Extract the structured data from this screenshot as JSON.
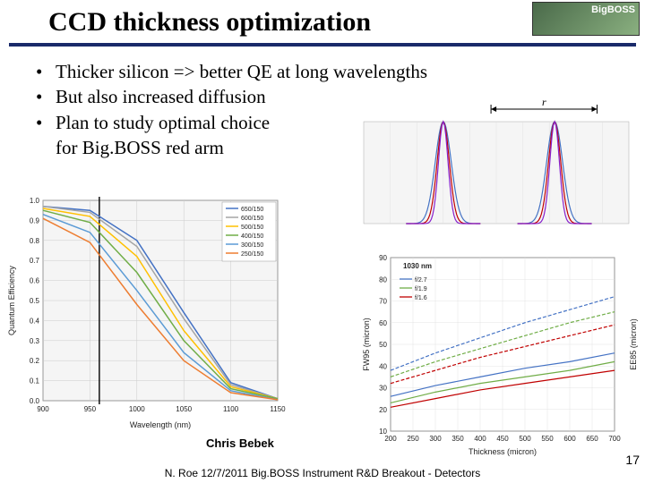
{
  "logo": {
    "text": "BigBOSS"
  },
  "title": "CCD thickness optimization",
  "bullets": [
    "Thicker silicon => better QE at long wavelengths",
    "But also increased diffusion",
    "Plan to study optimal choice"
  ],
  "bullet_cont": "for Big.BOSS red arm",
  "credit": "Chris Bebek",
  "footer": "N. Roe 12/7/2011 Big.BOSS Instrument R&D Breakout - Detectors",
  "pagenum": "17",
  "qe_chart": {
    "type": "line",
    "xlabel": "Wavelength (nm)",
    "ylabel": "Quantum Efficiency",
    "xlim": [
      900,
      1150
    ],
    "xtick_step": 50,
    "xticks": [
      900,
      950,
      1000,
      1050,
      1100,
      1150
    ],
    "ylim": [
      0.0,
      1.0
    ],
    "ytick_step": 0.1,
    "yticks": [
      "0.0",
      "0.1",
      "0.2",
      "0.3",
      "0.4",
      "0.5",
      "0.6",
      "0.7",
      "0.8",
      "0.9",
      "1.0"
    ],
    "background_color": "#f5f5f5",
    "grid_color": "#cccccc",
    "line_width": 1.5,
    "vline_x": 960,
    "vline_color": "#000000",
    "series": [
      {
        "label": "650/150",
        "color": "#4472c4",
        "data": [
          [
            900,
            0.97
          ],
          [
            950,
            0.95
          ],
          [
            1000,
            0.8
          ],
          [
            1050,
            0.44
          ],
          [
            1100,
            0.09
          ],
          [
            1150,
            0.01
          ]
        ]
      },
      {
        "label": "600/150",
        "color": "#a5a5a5",
        "data": [
          [
            900,
            0.97
          ],
          [
            950,
            0.94
          ],
          [
            1000,
            0.77
          ],
          [
            1050,
            0.41
          ],
          [
            1100,
            0.08
          ],
          [
            1150,
            0.01
          ]
        ]
      },
      {
        "label": "500/150",
        "color": "#ffc000",
        "data": [
          [
            900,
            0.96
          ],
          [
            950,
            0.92
          ],
          [
            1000,
            0.72
          ],
          [
            1050,
            0.35
          ],
          [
            1100,
            0.07
          ],
          [
            1150,
            0.01
          ]
        ]
      },
      {
        "label": "400/150",
        "color": "#70ad47",
        "data": [
          [
            900,
            0.95
          ],
          [
            950,
            0.89
          ],
          [
            1000,
            0.64
          ],
          [
            1050,
            0.3
          ],
          [
            1100,
            0.06
          ],
          [
            1150,
            0.01
          ]
        ]
      },
      {
        "label": "300/150",
        "color": "#5b9bd5",
        "data": [
          [
            900,
            0.93
          ],
          [
            950,
            0.84
          ],
          [
            1000,
            0.55
          ],
          [
            1050,
            0.24
          ],
          [
            1100,
            0.05
          ],
          [
            1150,
            0.005
          ]
        ]
      },
      {
        "label": "250/150",
        "color": "#ed7d31",
        "data": [
          [
            900,
            0.91
          ],
          [
            950,
            0.79
          ],
          [
            1000,
            0.48
          ],
          [
            1050,
            0.2
          ],
          [
            1100,
            0.04
          ],
          [
            1150,
            0.005
          ]
        ]
      }
    ]
  },
  "psf_chart": {
    "type": "line",
    "background_color": "#f5f5f5",
    "grid_color": "#dddddd",
    "xlim": [
      0,
      100
    ],
    "ylim": [
      0,
      1
    ],
    "series": [
      {
        "color": "#4472c4",
        "center": 30,
        "sigma": 3.0
      },
      {
        "color": "#c00000",
        "center": 30,
        "sigma": 2.3
      },
      {
        "color": "#8822cc",
        "center": 30,
        "sigma": 1.8
      },
      {
        "color": "#4472c4",
        "center": 72,
        "sigma": 3.0
      },
      {
        "color": "#c00000",
        "center": 72,
        "sigma": 2.3
      },
      {
        "color": "#8822cc",
        "center": 72,
        "sigma": 1.8
      }
    ],
    "arrow_label": "r",
    "arrow_color": "#000000"
  },
  "fwhm_chart": {
    "type": "line",
    "xlabel": "Thickness (micron)",
    "ylabel_left": "FW95 (micron)",
    "ylabel_right": "EE85 (micron)",
    "xlim": [
      200,
      700
    ],
    "xtick_step": 50,
    "xticks": [
      200,
      250,
      300,
      350,
      400,
      450,
      500,
      550,
      600,
      650,
      700
    ],
    "ylim": [
      10,
      90
    ],
    "ytick_step": 10,
    "yticks": [
      10,
      20,
      30,
      40,
      50,
      60,
      70,
      80,
      90
    ],
    "background_color": "#ffffff",
    "grid_color": "#dddddd",
    "line_width": 1.2,
    "wav_label": "1030 nm",
    "legend_items": [
      "f/2.7",
      "f/1.9",
      "f/1.6"
    ],
    "legend_colors": [
      "#4472c4",
      "#70ad47",
      "#c00000"
    ],
    "series": [
      {
        "color": "#4472c4",
        "dash": "4 2",
        "data": [
          [
            200,
            38
          ],
          [
            300,
            46
          ],
          [
            400,
            53
          ],
          [
            500,
            60
          ],
          [
            600,
            66
          ],
          [
            700,
            72
          ]
        ]
      },
      {
        "color": "#70ad47",
        "dash": "4 2",
        "data": [
          [
            200,
            35
          ],
          [
            300,
            42
          ],
          [
            400,
            48
          ],
          [
            500,
            54
          ],
          [
            600,
            60
          ],
          [
            700,
            65
          ]
        ]
      },
      {
        "color": "#c00000",
        "dash": "4 2",
        "data": [
          [
            200,
            32
          ],
          [
            300,
            38
          ],
          [
            400,
            44
          ],
          [
            500,
            49
          ],
          [
            600,
            54
          ],
          [
            700,
            59
          ]
        ]
      },
      {
        "color": "#4472c4",
        "dash": "none",
        "data": [
          [
            200,
            26
          ],
          [
            300,
            31
          ],
          [
            400,
            35
          ],
          [
            500,
            39
          ],
          [
            600,
            42
          ],
          [
            700,
            46
          ]
        ]
      },
      {
        "color": "#70ad47",
        "dash": "none",
        "data": [
          [
            200,
            23
          ],
          [
            300,
            28
          ],
          [
            400,
            32
          ],
          [
            500,
            35
          ],
          [
            600,
            38
          ],
          [
            700,
            42
          ]
        ]
      },
      {
        "color": "#c00000",
        "dash": "none",
        "data": [
          [
            200,
            21
          ],
          [
            300,
            25
          ],
          [
            400,
            29
          ],
          [
            500,
            32
          ],
          [
            600,
            35
          ],
          [
            700,
            38
          ]
        ]
      }
    ]
  }
}
